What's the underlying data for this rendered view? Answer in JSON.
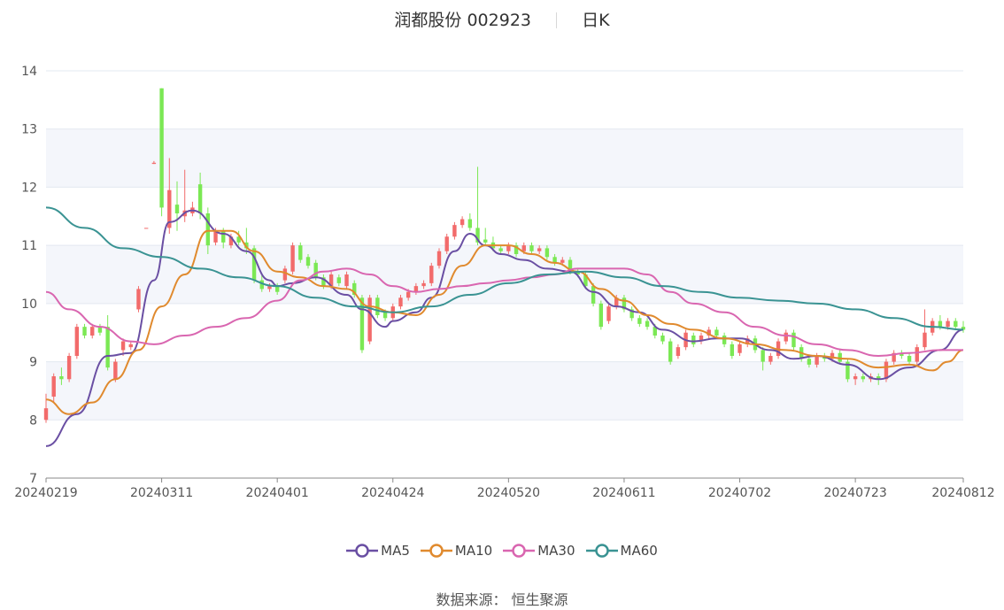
{
  "header": {
    "title": "润都股份 002923",
    "period": "日K"
  },
  "source": {
    "label": "数据来源：",
    "value": "恒生聚源"
  },
  "legend": [
    {
      "name": "MA5",
      "color": "#6a4fa3"
    },
    {
      "name": "MA10",
      "color": "#e08a2e"
    },
    {
      "name": "MA30",
      "color": "#d966b0"
    },
    {
      "name": "MA60",
      "color": "#3a9393"
    }
  ],
  "colors": {
    "up": "#f26b6b",
    "down": "#7be854",
    "grid": "#e3e8f0",
    "band": "#f4f6fb",
    "axis": "#555555"
  },
  "chart_data": {
    "type": "candlestick",
    "yticks": [
      7,
      8,
      9,
      10,
      11,
      12,
      13,
      14
    ],
    "ylim": [
      7,
      14
    ],
    "xticks": [
      "20240219",
      "20240311",
      "20240401",
      "20240424",
      "20240520",
      "20240611",
      "20240702",
      "20240723",
      "20240812"
    ],
    "xtick_index": [
      0,
      15,
      30,
      45,
      60,
      75,
      90,
      105,
      119
    ],
    "count": 120,
    "candles": [
      [
        8.0,
        8.2,
        8.45,
        7.95
      ],
      [
        8.4,
        8.75,
        8.8,
        8.3
      ],
      [
        8.75,
        8.7,
        8.9,
        8.6
      ],
      [
        8.7,
        9.1,
        9.15,
        8.65
      ],
      [
        9.1,
        9.6,
        9.65,
        9.05
      ],
      [
        9.6,
        9.45,
        9.65,
        9.4
      ],
      [
        9.45,
        9.6,
        9.65,
        9.4
      ],
      [
        9.6,
        9.5,
        9.65,
        9.45
      ],
      [
        9.6,
        8.9,
        9.8,
        8.85
      ],
      [
        8.7,
        9.0,
        9.05,
        8.65
      ],
      [
        9.2,
        9.35,
        9.4,
        9.1
      ],
      [
        9.25,
        9.3,
        9.35,
        9.2
      ],
      [
        9.9,
        10.25,
        10.3,
        9.85
      ],
      [
        11.3,
        11.3,
        11.3,
        11.3
      ],
      [
        12.4,
        12.42,
        12.45,
        12.4
      ],
      [
        13.7,
        11.65,
        13.7,
        11.5
      ],
      [
        11.3,
        11.95,
        12.5,
        11.2
      ],
      [
        11.7,
        11.55,
        12.1,
        11.25
      ],
      [
        11.5,
        11.6,
        12.3,
        11.4
      ],
      [
        11.55,
        11.65,
        11.75,
        11.5
      ],
      [
        12.05,
        11.55,
        12.25,
        11.45
      ],
      [
        11.55,
        11.0,
        11.65,
        10.85
      ],
      [
        11.05,
        11.25,
        11.3,
        11.0
      ],
      [
        11.25,
        11.05,
        11.3,
        10.95
      ],
      [
        11.0,
        11.15,
        11.2,
        10.95
      ],
      [
        11.15,
        11.05,
        11.25,
        11.0
      ],
      [
        11.05,
        10.95,
        11.3,
        10.85
      ],
      [
        10.95,
        10.4,
        11.0,
        10.35
      ],
      [
        10.4,
        10.25,
        10.5,
        10.2
      ],
      [
        10.25,
        10.3,
        10.35,
        10.2
      ],
      [
        10.3,
        10.2,
        10.35,
        10.15
      ],
      [
        10.4,
        10.6,
        10.65,
        10.35
      ],
      [
        10.55,
        11.0,
        11.05,
        10.5
      ],
      [
        11.0,
        10.75,
        11.05,
        10.7
      ],
      [
        10.8,
        10.65,
        10.85,
        10.6
      ],
      [
        10.7,
        10.45,
        10.75,
        10.4
      ],
      [
        10.45,
        10.3,
        10.5,
        10.25
      ],
      [
        10.3,
        10.5,
        10.55,
        10.25
      ],
      [
        10.45,
        10.35,
        10.5,
        10.3
      ],
      [
        10.3,
        10.5,
        10.55,
        10.25
      ],
      [
        10.35,
        10.15,
        10.4,
        10.1
      ],
      [
        10.1,
        9.2,
        10.15,
        9.15
      ],
      [
        9.35,
        10.1,
        10.15,
        9.3
      ],
      [
        10.1,
        9.8,
        10.15,
        9.75
      ],
      [
        9.85,
        9.75,
        9.9,
        9.7
      ],
      [
        9.75,
        9.95,
        10.0,
        9.7
      ],
      [
        9.95,
        10.1,
        10.15,
        9.9
      ],
      [
        10.1,
        10.2,
        10.25,
        10.05
      ],
      [
        10.2,
        10.3,
        10.35,
        10.15
      ],
      [
        10.3,
        10.35,
        10.4,
        10.25
      ],
      [
        10.35,
        10.65,
        10.7,
        10.3
      ],
      [
        10.65,
        10.9,
        10.95,
        10.6
      ],
      [
        10.9,
        11.15,
        11.2,
        10.85
      ],
      [
        11.15,
        11.35,
        11.4,
        11.1
      ],
      [
        11.35,
        11.45,
        11.5,
        11.3
      ],
      [
        11.45,
        11.3,
        11.55,
        11.25
      ],
      [
        11.3,
        11.05,
        12.35,
        11.0
      ],
      [
        11.1,
        11.05,
        11.3,
        11.0
      ],
      [
        11.05,
        10.95,
        11.15,
        10.9
      ],
      [
        10.95,
        10.9,
        11.0,
        10.85
      ],
      [
        10.9,
        11.0,
        11.05,
        10.85
      ],
      [
        11.0,
        10.85,
        11.05,
        10.8
      ],
      [
        10.9,
        11.0,
        11.05,
        10.85
      ],
      [
        11.0,
        10.9,
        11.05,
        10.85
      ],
      [
        10.9,
        10.95,
        11.0,
        10.85
      ],
      [
        10.95,
        10.8,
        11.0,
        10.75
      ],
      [
        10.8,
        10.7,
        10.85,
        10.65
      ],
      [
        10.7,
        10.75,
        10.8,
        10.65
      ],
      [
        10.75,
        10.55,
        10.8,
        10.5
      ],
      [
        10.55,
        10.5,
        10.6,
        10.45
      ],
      [
        10.5,
        10.3,
        10.55,
        10.25
      ],
      [
        10.3,
        10.0,
        10.35,
        9.95
      ],
      [
        10.0,
        9.6,
        10.05,
        9.55
      ],
      [
        9.7,
        9.95,
        10.0,
        9.65
      ],
      [
        9.95,
        10.1,
        10.15,
        9.9
      ],
      [
        10.1,
        9.9,
        10.15,
        9.85
      ],
      [
        9.9,
        9.75,
        9.95,
        9.7
      ],
      [
        9.75,
        9.65,
        9.8,
        9.6
      ],
      [
        9.7,
        9.6,
        9.75,
        9.55
      ],
      [
        9.6,
        9.45,
        9.65,
        9.4
      ],
      [
        9.45,
        9.35,
        9.5,
        9.3
      ],
      [
        9.35,
        9.0,
        9.4,
        8.95
      ],
      [
        9.1,
        9.25,
        9.3,
        9.05
      ],
      [
        9.25,
        9.5,
        9.55,
        9.2
      ],
      [
        9.45,
        9.3,
        9.5,
        9.25
      ],
      [
        9.35,
        9.45,
        9.5,
        9.3
      ],
      [
        9.45,
        9.55,
        9.6,
        9.4
      ],
      [
        9.55,
        9.45,
        9.6,
        9.4
      ],
      [
        9.45,
        9.3,
        9.5,
        9.25
      ],
      [
        9.3,
        9.1,
        9.35,
        9.05
      ],
      [
        9.15,
        9.3,
        9.35,
        9.1
      ],
      [
        9.3,
        9.4,
        9.45,
        9.25
      ],
      [
        9.4,
        9.2,
        9.45,
        9.15
      ],
      [
        9.2,
        9.0,
        9.25,
        8.85
      ],
      [
        9.0,
        9.1,
        9.15,
        8.95
      ],
      [
        9.1,
        9.35,
        9.4,
        9.05
      ],
      [
        9.35,
        9.5,
        9.55,
        9.3
      ],
      [
        9.5,
        9.25,
        9.55,
        9.2
      ],
      [
        9.25,
        9.05,
        9.3,
        9.0
      ],
      [
        9.05,
        8.95,
        9.1,
        8.9
      ],
      [
        8.95,
        9.1,
        9.15,
        8.9
      ],
      [
        9.1,
        9.05,
        9.15,
        9.0
      ],
      [
        9.05,
        9.15,
        9.2,
        9.0
      ],
      [
        9.15,
        9.0,
        9.2,
        8.95
      ],
      [
        9.0,
        8.7,
        9.05,
        8.65
      ],
      [
        8.7,
        8.75,
        8.8,
        8.6
      ],
      [
        8.75,
        8.7,
        8.8,
        8.65
      ],
      [
        8.7,
        8.75,
        8.8,
        8.65
      ],
      [
        8.75,
        8.7,
        8.8,
        8.6
      ],
      [
        8.7,
        9.0,
        9.05,
        8.65
      ],
      [
        9.0,
        9.15,
        9.2,
        8.95
      ],
      [
        9.15,
        9.1,
        9.2,
        9.05
      ],
      [
        9.1,
        9.0,
        9.15,
        8.95
      ],
      [
        9.0,
        9.25,
        9.3,
        8.95
      ],
      [
        9.25,
        9.5,
        9.9,
        9.2
      ],
      [
        9.5,
        9.7,
        9.75,
        9.45
      ],
      [
        9.7,
        9.6,
        9.8,
        9.55
      ],
      [
        9.6,
        9.7,
        9.75,
        9.55
      ],
      [
        9.7,
        9.6,
        9.75,
        9.55
      ],
      [
        9.6,
        9.55,
        9.7,
        9.5
      ]
    ],
    "series": [
      {
        "name": "MA5",
        "points": [
          [
            0,
            7.55
          ],
          [
            4,
            8.1
          ],
          [
            8,
            9.1
          ],
          [
            11,
            9.15
          ],
          [
            14,
            10.4
          ],
          [
            16,
            11.4
          ],
          [
            19,
            11.6
          ],
          [
            23,
            11.2
          ],
          [
            26,
            10.9
          ],
          [
            29,
            10.4
          ],
          [
            30,
            10.3
          ],
          [
            32,
            10.35
          ],
          [
            35,
            10.45
          ],
          [
            39,
            10.15
          ],
          [
            41,
            9.9
          ],
          [
            44,
            9.6
          ],
          [
            45,
            9.7
          ],
          [
            48,
            9.85
          ],
          [
            50,
            10.1
          ],
          [
            53,
            10.9
          ],
          [
            55,
            11.2
          ],
          [
            57,
            11.0
          ],
          [
            59,
            10.85
          ],
          [
            62,
            10.75
          ],
          [
            65,
            10.6
          ],
          [
            68,
            10.55
          ],
          [
            71,
            10.2
          ],
          [
            74,
            9.95
          ],
          [
            77,
            9.85
          ],
          [
            80,
            9.55
          ],
          [
            84,
            9.35
          ],
          [
            87,
            9.4
          ],
          [
            90,
            9.4
          ],
          [
            94,
            9.2
          ],
          [
            97,
            9.05
          ],
          [
            100,
            9.1
          ],
          [
            104,
            8.95
          ],
          [
            108,
            8.7
          ],
          [
            112,
            8.9
          ],
          [
            116,
            9.2
          ],
          [
            119,
            9.55
          ]
        ]
      },
      {
        "name": "MA10",
        "points": [
          [
            0,
            8.35
          ],
          [
            3,
            8.1
          ],
          [
            6,
            8.3
          ],
          [
            9,
            8.7
          ],
          [
            12,
            9.2
          ],
          [
            15,
            9.95
          ],
          [
            18,
            10.5
          ],
          [
            21,
            11.25
          ],
          [
            24,
            11.25
          ],
          [
            27,
            10.9
          ],
          [
            30,
            10.55
          ],
          [
            33,
            10.45
          ],
          [
            36,
            10.3
          ],
          [
            39,
            10.25
          ],
          [
            42,
            9.95
          ],
          [
            45,
            9.85
          ],
          [
            48,
            9.8
          ],
          [
            51,
            10.15
          ],
          [
            54,
            10.65
          ],
          [
            57,
            11.0
          ],
          [
            60,
            11.0
          ],
          [
            63,
            10.85
          ],
          [
            66,
            10.7
          ],
          [
            69,
            10.55
          ],
          [
            72,
            10.25
          ],
          [
            75,
            10.05
          ],
          [
            78,
            9.8
          ],
          [
            81,
            9.65
          ],
          [
            84,
            9.55
          ],
          [
            88,
            9.4
          ],
          [
            92,
            9.3
          ],
          [
            96,
            9.2
          ],
          [
            100,
            9.1
          ],
          [
            104,
            9.05
          ],
          [
            108,
            8.9
          ],
          [
            112,
            8.95
          ],
          [
            115,
            8.85
          ],
          [
            117,
            9.0
          ],
          [
            119,
            9.2
          ]
        ]
      },
      {
        "name": "MA30",
        "points": [
          [
            0,
            10.2
          ],
          [
            3,
            9.9
          ],
          [
            7,
            9.6
          ],
          [
            11,
            9.35
          ],
          [
            14,
            9.3
          ],
          [
            18,
            9.45
          ],
          [
            22,
            9.6
          ],
          [
            26,
            9.75
          ],
          [
            30,
            10.05
          ],
          [
            33,
            10.4
          ],
          [
            36,
            10.55
          ],
          [
            39,
            10.6
          ],
          [
            42,
            10.5
          ],
          [
            45,
            10.3
          ],
          [
            48,
            10.2
          ],
          [
            51,
            10.25
          ],
          [
            54,
            10.3
          ],
          [
            57,
            10.35
          ],
          [
            60,
            10.4
          ],
          [
            63,
            10.45
          ],
          [
            66,
            10.5
          ],
          [
            69,
            10.6
          ],
          [
            72,
            10.6
          ],
          [
            75,
            10.6
          ],
          [
            78,
            10.5
          ],
          [
            81,
            10.2
          ],
          [
            84,
            10.0
          ],
          [
            88,
            9.85
          ],
          [
            92,
            9.6
          ],
          [
            96,
            9.45
          ],
          [
            100,
            9.3
          ],
          [
            104,
            9.2
          ],
          [
            108,
            9.1
          ],
          [
            112,
            9.15
          ],
          [
            116,
            9.2
          ],
          [
            119,
            9.2
          ]
        ]
      },
      {
        "name": "MA60",
        "points": [
          [
            0,
            11.65
          ],
          [
            5,
            11.3
          ],
          [
            10,
            10.95
          ],
          [
            15,
            10.8
          ],
          [
            20,
            10.6
          ],
          [
            25,
            10.45
          ],
          [
            30,
            10.3
          ],
          [
            35,
            10.1
          ],
          [
            40,
            9.95
          ],
          [
            45,
            9.85
          ],
          [
            50,
            9.95
          ],
          [
            55,
            10.15
          ],
          [
            60,
            10.35
          ],
          [
            65,
            10.5
          ],
          [
            70,
            10.55
          ],
          [
            75,
            10.45
          ],
          [
            80,
            10.3
          ],
          [
            85,
            10.2
          ],
          [
            90,
            10.1
          ],
          [
            95,
            10.05
          ],
          [
            100,
            10.0
          ],
          [
            105,
            9.9
          ],
          [
            110,
            9.75
          ],
          [
            115,
            9.6
          ],
          [
            119,
            9.55
          ]
        ]
      }
    ]
  }
}
